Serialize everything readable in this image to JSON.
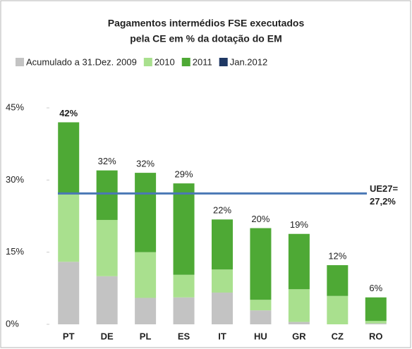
{
  "chart_data": {
    "type": "stacked_bar",
    "title": [
      "Pagamentos intermédios FSE executados",
      "pela CE em % da dotação do EM"
    ],
    "categories": [
      "PT",
      "DE",
      "PL",
      "ES",
      "IT",
      "HU",
      "GR",
      "CZ",
      "RO"
    ],
    "series": [
      {
        "name": "Acumulado a 31.Dez. 2009",
        "color": "#c3c3c3",
        "values": [
          13,
          10,
          5.5,
          5.6,
          6.6,
          2.9,
          0.5,
          0,
          0.2
        ]
      },
      {
        "name": "2010",
        "color": "#a9e08e",
        "values": [
          14,
          11.7,
          9.5,
          4.7,
          4.8,
          2.2,
          6.8,
          5.9,
          0.5
        ]
      },
      {
        "name": "2011",
        "color": "#4ea935",
        "values": [
          15,
          10.3,
          16.5,
          19,
          10.4,
          14.9,
          11.5,
          6.4,
          4.9
        ]
      },
      {
        "name": "Jan.2012",
        "color": "#1f3864",
        "values": [
          0,
          0,
          0,
          0,
          0,
          0,
          0,
          0,
          0
        ]
      }
    ],
    "total_labels": [
      "42%",
      "32%",
      "32%",
      "29%",
      "22%",
      "20%",
      "19%",
      "12%",
      "6%"
    ],
    "ylim": [
      0,
      45
    ],
    "yticks": [
      {
        "value": 0,
        "label": "0%"
      },
      {
        "value": 15,
        "label": "15%"
      },
      {
        "value": 30,
        "label": "30%"
      },
      {
        "value": 45,
        "label": "45%"
      }
    ],
    "reference_line": {
      "value": 27.2,
      "color": "#4a78b5",
      "label": [
        "UE27=",
        "27,2%"
      ]
    }
  }
}
